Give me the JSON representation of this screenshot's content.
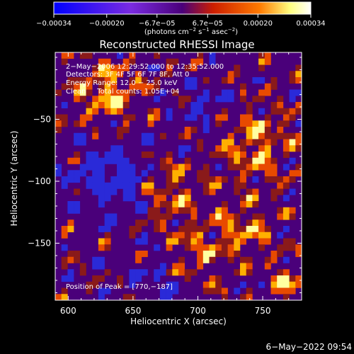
{
  "chart_data": {
    "type": "heatmap",
    "title": "Reconstructed RHESSI Image",
    "xlabel": "Heliocentric X (arcsec)",
    "ylabel": "Heliocentric Y (arcsec)",
    "xlim": [
      590,
      780
    ],
    "ylim": [
      -196,
      4
    ],
    "x_ticks": [
      600,
      650,
      700,
      750
    ],
    "x_tick_labels": [
      "600",
      "650",
      "700",
      "750"
    ],
    "y_ticks": [
      -50,
      -100,
      -150
    ],
    "y_tick_labels": [
      "−50",
      "−100",
      "−150"
    ],
    "colorbar": {
      "range": [
        -0.00034,
        0.00034
      ],
      "ticks": [
        -0.00034,
        -0.0002,
        -6.7e-05,
        6.7e-05,
        0.0002,
        0.00034
      ],
      "tick_labels": [
        "−0.00034",
        "−0.00020",
        "−6.7e−05",
        "6.7e−05",
        "0.00020",
        "0.00034"
      ],
      "unit_parts": [
        "(photons cm",
        "−2",
        " s",
        "−1",
        " asec",
        "−2",
        ")"
      ],
      "colors": [
        "#0000ff",
        "#7a2be0",
        "#4a007a",
        "#cc1e00",
        "#ff7a00",
        "#ffff80",
        "#ffffff"
      ]
    },
    "annotations": [
      "2−May−2006 12:29:52.000 to 12:35:52.000",
      "Detectors: 3F 4F 5F 6F 7F 8F, Att 0",
      "Energy Range: 12.0 − 25.0 keV",
      "Clean     Total counts: 1.05E+04"
    ],
    "peak_label": "Position of Peak = [770,−187]",
    "peak_position": [
      770,
      -187
    ],
    "grid": false,
    "image_colors": {
      "background": "#4a007a",
      "negative": "#2a2ad8",
      "low": "#8a1a1a",
      "mid": "#e84a00",
      "high": "#ffb000",
      "peak": "#ffffa0"
    }
  },
  "footer_timestamp": "6−May−2022 09:54"
}
